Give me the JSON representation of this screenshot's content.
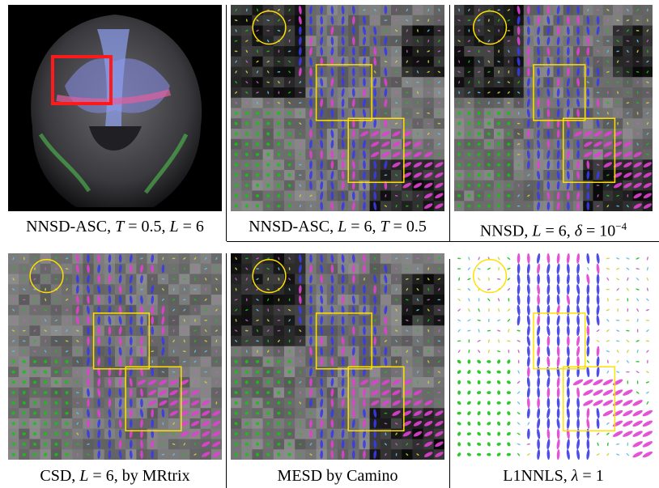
{
  "captions": {
    "p1": {
      "a": "NNSD-ASC, ",
      "b": "T",
      "c": " = 0.5, ",
      "d": "L",
      "e": " = 6"
    },
    "p2": {
      "a": "NNSD-ASC, ",
      "b": "L",
      "c": " = 6, ",
      "d": "T",
      "e": " = 0.5"
    },
    "p3": {
      "a": "NNSD, ",
      "b": "L",
      "c": " = 6, ",
      "d": "δ",
      "e": " = 10",
      "sup": "−4"
    },
    "p4": {
      "a": "CSD, ",
      "b": "L",
      "c": " = 6, by MRtrix"
    },
    "p5": {
      "a": "MESD by Camino"
    },
    "p6": {
      "a": "L1NNLS, ",
      "b": "λ",
      "c": " = 1"
    }
  },
  "colors": {
    "roi_box": "#ff1a1a",
    "highlight": "#ffe000",
    "fiber_blue": "#3a3ae8",
    "fiber_magenta": "#e040d0",
    "fiber_green": "#18c018",
    "dark_panel": "#0a0a0a"
  }
}
